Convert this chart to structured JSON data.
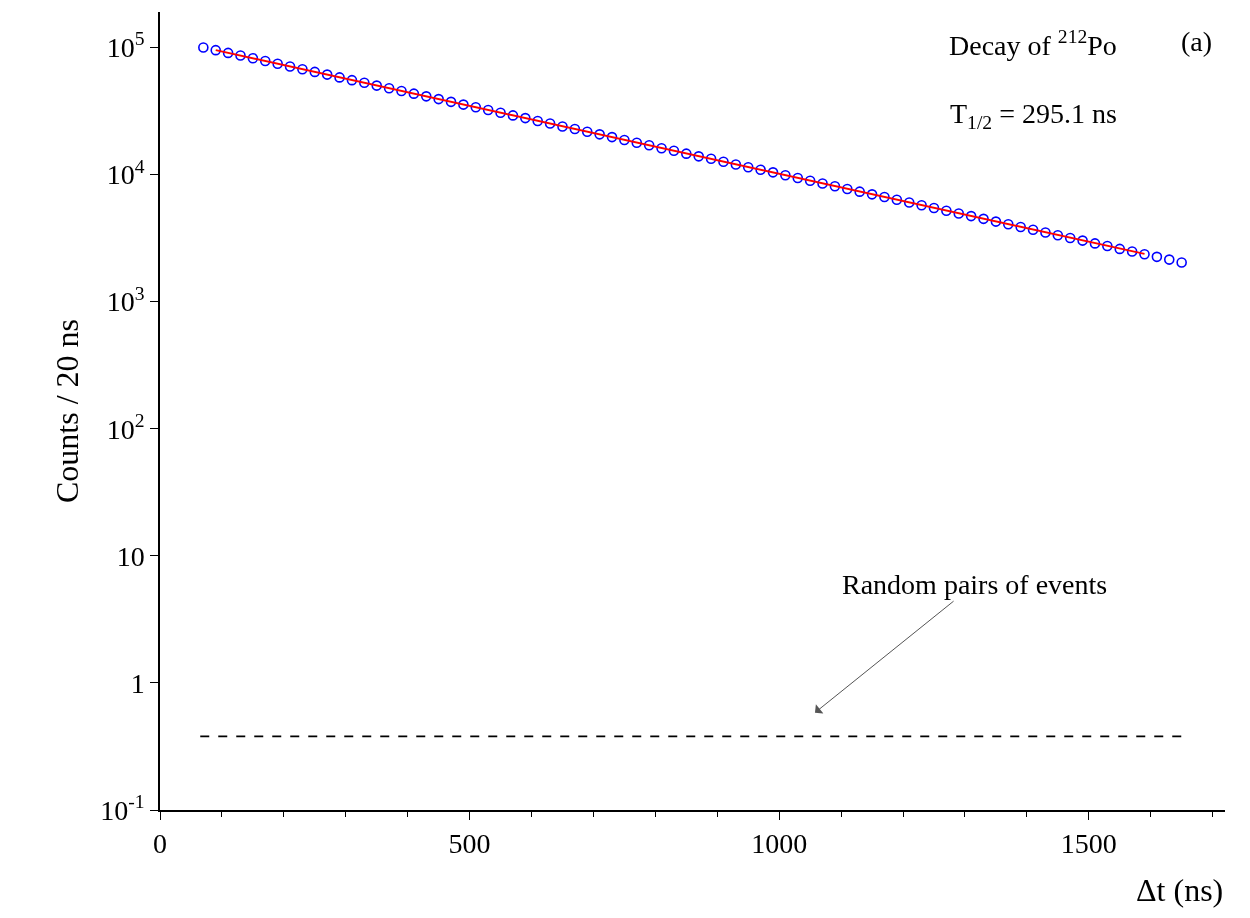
{
  "chart_data": {
    "type": "scatter",
    "xlabel": "Δt (ns)",
    "ylabel": "Counts / 20 ns",
    "log": "y",
    "marker": "circle",
    "xlim": [
      0,
      1720
    ],
    "xticks": [
      0,
      500,
      1000,
      1500
    ],
    "ylim": [
      0.1,
      190000
    ],
    "yticks": [
      {
        "value": 0.1,
        "label": "10$^{-1}$"
      },
      1,
      10,
      {
        "value": 100,
        "label": "10$^{2}$"
      },
      {
        "value": 1000,
        "label": "10$^{3}$"
      },
      {
        "value": 10000,
        "label": "10$^{4}$"
      },
      {
        "value": 100000,
        "label": "10$^{5}$"
      }
    ],
    "x": [
      70,
      90,
      110,
      130,
      150,
      170,
      190,
      210,
      230,
      250,
      270,
      290,
      310,
      330,
      350,
      370,
      390,
      410,
      430,
      450,
      470,
      490,
      510,
      530,
      550,
      570,
      590,
      610,
      630,
      650,
      670,
      690,
      710,
      730,
      750,
      770,
      790,
      810,
      830,
      850,
      870,
      890,
      910,
      930,
      950,
      970,
      990,
      1010,
      1030,
      1050,
      1070,
      1090,
      1110,
      1130,
      1150,
      1170,
      1190,
      1210,
      1230,
      1250,
      1270,
      1290,
      1310,
      1330,
      1350,
      1370,
      1390,
      1410,
      1430,
      1450,
      1470,
      1490,
      1510,
      1530,
      1550,
      1570,
      1590,
      1610,
      1630,
      1650
    ],
    "series": [
      {
        "color": "#0000ff",
        "values": [
          100000,
          95200,
          90600,
          86300,
          82100,
          78200,
          74400,
          70800,
          67400,
          64200,
          61100,
          58100,
          55300,
          52700,
          50100,
          47700,
          45400,
          43300,
          41200,
          39200,
          37300,
          35500,
          33800,
          32200,
          30600,
          29200,
          27800,
          26400,
          25200,
          23900,
          22800,
          21700,
          20700,
          19700,
          18700,
          17800,
          17000,
          16100,
          15400,
          14600,
          13900,
          13300,
          12600,
          12000,
          11400,
          10900,
          10400,
          9860,
          9380,
          8930,
          8500,
          8090,
          7700,
          7330,
          6980,
          6650,
          6330,
          6020,
          5730,
          5460,
          5190,
          4940,
          4710,
          4480,
          4260,
          4060,
          3860,
          3680,
          3500,
          3330,
          3170,
          3020,
          2870,
          2740,
          2600,
          2480,
          2360,
          2250,
          2140,
          2030
        ]
      },
      {
        "type": "line",
        "color": "#ff0000",
        "marker": "none",
        "x": [
          90,
          1590
        ],
        "values": [
          95200,
          2370
        ]
      },
      {
        "type": "line",
        "color": "#000000",
        "marker": "none",
        "line_style": "dashed",
        "x": [
          65,
          1655
        ],
        "values": [
          0.38,
          0.38
        ]
      }
    ],
    "annotations": [
      "Decay of $^{212}$Po",
      "T$_{1/2}$ = 295.1 ns",
      "(a)",
      "Random pairs of events"
    ]
  }
}
